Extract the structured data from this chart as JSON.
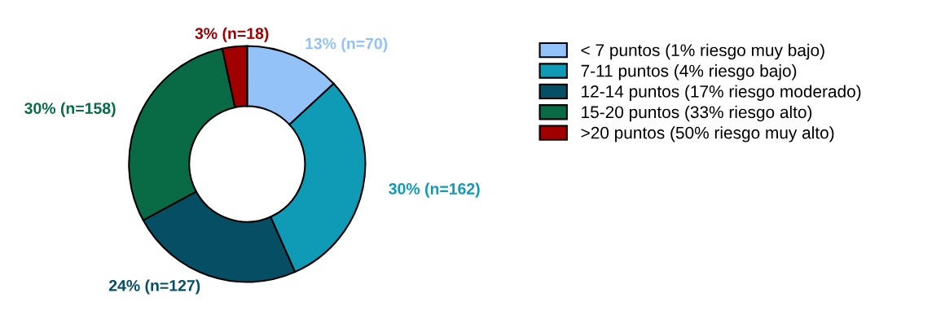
{
  "chart_data": {
    "type": "donut",
    "categories": [
      "< 7 puntos (1% riesgo muy bajo)",
      "7-11 puntos (4% riesgo bajo)",
      "12-14 puntos (17% riesgo moderado)",
      "15-20 puntos (33% riesgo alto)",
      ">20 puntos (50% riesgo muy alto)"
    ],
    "values": [
      70,
      162,
      127,
      158,
      18
    ],
    "value_labels": [
      "13% (n=70)",
      "30% (n=162)",
      "24% (n=127)",
      "30% (n=158)",
      "3% (n=18)"
    ],
    "colors": [
      "#93c2f8",
      "#0f9ab5",
      "#064e63",
      "#086b45",
      "#a00000"
    ],
    "legend": "right"
  }
}
